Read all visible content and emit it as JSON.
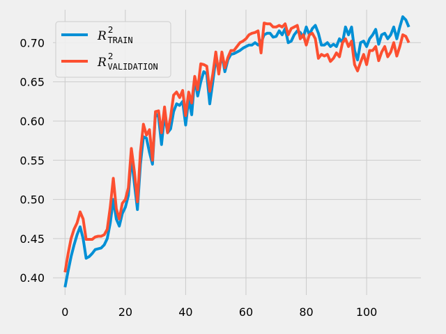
{
  "chart_data": {
    "type": "line",
    "title": "",
    "xlabel": "",
    "ylabel": "",
    "xlim": [
      -4,
      118
    ],
    "ylim": [
      0.378,
      0.742
    ],
    "xticks": [
      0,
      20,
      40,
      60,
      80,
      100
    ],
    "yticks": [
      0.4,
      0.45,
      0.5,
      0.55,
      0.6,
      0.65,
      0.7
    ],
    "xtick_labels": [
      "0",
      "20",
      "40",
      "60",
      "80",
      "100"
    ],
    "ytick_labels": [
      "0.40",
      "0.45",
      "0.50",
      "0.55",
      "0.60",
      "0.65",
      "0.70"
    ],
    "grid": true,
    "legend_position": "top-left",
    "series": [
      {
        "name": "R2 TRAIN",
        "legend": {
          "base": "R",
          "sup": "2",
          "sub": "TRAIN"
        },
        "color": "#008fd5",
        "x": [
          0,
          1,
          2,
          3,
          4,
          5,
          6,
          7,
          8,
          9,
          10,
          11,
          12,
          13,
          14,
          15,
          16,
          17,
          18,
          19,
          20,
          21,
          22,
          23,
          24,
          25,
          26,
          27,
          28,
          29,
          30,
          31,
          32,
          33,
          34,
          35,
          36,
          37,
          38,
          39,
          40,
          41,
          42,
          43,
          44,
          45,
          46,
          47,
          48,
          49,
          50,
          51,
          52,
          53,
          54,
          55,
          56,
          57,
          58,
          59,
          60,
          61,
          62,
          63,
          64,
          65,
          66,
          67,
          68,
          69,
          70,
          71,
          72,
          73,
          74,
          75,
          76,
          77,
          78,
          79,
          80,
          81,
          82,
          83,
          84,
          85,
          86,
          87,
          88,
          89,
          90,
          91,
          92,
          93,
          94,
          95,
          96,
          97,
          98,
          99,
          100,
          101,
          102,
          103,
          104,
          105,
          106,
          107,
          108,
          109,
          110,
          111,
          112,
          113,
          114
        ],
        "y": [
          0.388,
          0.408,
          0.427,
          0.442,
          0.455,
          0.465,
          0.45,
          0.425,
          0.427,
          0.431,
          0.436,
          0.437,
          0.438,
          0.442,
          0.45,
          0.47,
          0.5,
          0.475,
          0.466,
          0.482,
          0.49,
          0.505,
          0.555,
          0.52,
          0.487,
          0.545,
          0.58,
          0.578,
          0.56,
          0.545,
          0.61,
          0.605,
          0.57,
          0.608,
          0.585,
          0.59,
          0.612,
          0.622,
          0.62,
          0.625,
          0.595,
          0.628,
          0.608,
          0.655,
          0.632,
          0.65,
          0.663,
          0.66,
          0.622,
          0.65,
          0.68,
          0.663,
          0.685,
          0.663,
          0.678,
          0.685,
          0.686,
          0.688,
          0.69,
          0.693,
          0.695,
          0.697,
          0.697,
          0.7,
          0.697,
          0.7,
          0.71,
          0.712,
          0.712,
          0.707,
          0.708,
          0.715,
          0.71,
          0.718,
          0.7,
          0.702,
          0.71,
          0.715,
          0.713,
          0.707,
          0.72,
          0.71,
          0.718,
          0.722,
          0.712,
          0.697,
          0.697,
          0.7,
          0.695,
          0.698,
          0.695,
          0.705,
          0.7,
          0.72,
          0.71,
          0.72,
          0.69,
          0.678,
          0.7,
          0.702,
          0.695,
          0.705,
          0.71,
          0.717,
          0.698,
          0.71,
          0.712,
          0.705,
          0.71,
          0.72,
          0.705,
          0.72,
          0.733,
          0.729,
          0.72
        ]
      },
      {
        "name": "R2 VALIDATION",
        "legend": {
          "base": "R",
          "sup": "2",
          "sub": "VALIDATION"
        },
        "color": "#fc4f30",
        "x": [
          0,
          1,
          2,
          3,
          4,
          5,
          6,
          7,
          8,
          9,
          10,
          11,
          12,
          13,
          14,
          15,
          16,
          17,
          18,
          19,
          20,
          21,
          22,
          23,
          24,
          25,
          26,
          27,
          28,
          29,
          30,
          31,
          32,
          33,
          34,
          35,
          36,
          37,
          38,
          39,
          40,
          41,
          42,
          43,
          44,
          45,
          46,
          47,
          48,
          49,
          50,
          51,
          52,
          53,
          54,
          55,
          56,
          57,
          58,
          59,
          60,
          61,
          62,
          63,
          64,
          65,
          66,
          67,
          68,
          69,
          70,
          71,
          72,
          73,
          74,
          75,
          76,
          77,
          78,
          79,
          80,
          81,
          82,
          83,
          84,
          85,
          86,
          87,
          88,
          89,
          90,
          91,
          92,
          93,
          94,
          95,
          96,
          97,
          98,
          99,
          100,
          101,
          102,
          103,
          104,
          105,
          106,
          107,
          108,
          109,
          110,
          111,
          112,
          113,
          114
        ],
        "y": [
          0.407,
          0.43,
          0.45,
          0.462,
          0.47,
          0.484,
          0.475,
          0.449,
          0.449,
          0.449,
          0.452,
          0.453,
          0.453,
          0.455,
          0.462,
          0.49,
          0.527,
          0.488,
          0.475,
          0.495,
          0.5,
          0.515,
          0.565,
          0.535,
          0.497,
          0.56,
          0.596,
          0.582,
          0.589,
          0.55,
          0.612,
          0.613,
          0.585,
          0.618,
          0.585,
          0.605,
          0.633,
          0.637,
          0.63,
          0.639,
          0.607,
          0.637,
          0.623,
          0.657,
          0.64,
          0.673,
          0.672,
          0.67,
          0.638,
          0.66,
          0.688,
          0.66,
          0.688,
          0.668,
          0.681,
          0.69,
          0.69,
          0.695,
          0.7,
          0.702,
          0.705,
          0.71,
          0.712,
          0.713,
          0.715,
          0.687,
          0.725,
          0.724,
          0.724,
          0.72,
          0.72,
          0.722,
          0.72,
          0.724,
          0.71,
          0.718,
          0.72,
          0.722,
          0.705,
          0.71,
          0.697,
          0.71,
          0.712,
          0.705,
          0.68,
          0.685,
          0.683,
          0.685,
          0.676,
          0.68,
          0.687,
          0.682,
          0.7,
          0.705,
          0.695,
          0.702,
          0.672,
          0.664,
          0.675,
          0.685,
          0.672,
          0.69,
          0.69,
          0.695,
          0.677,
          0.688,
          0.695,
          0.682,
          0.688,
          0.7,
          0.683,
          0.695,
          0.71,
          0.708,
          0.7
        ]
      }
    ]
  }
}
